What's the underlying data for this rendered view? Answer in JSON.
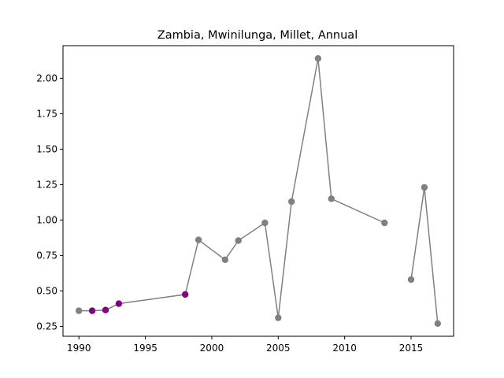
{
  "chart_data": {
    "type": "line",
    "title": "Zambia, Mwinilunga, Millet, Annual",
    "xlabel": "",
    "ylabel": "",
    "xlim": [
      1988.8,
      2018.2
    ],
    "ylim": [
      0.18,
      2.23
    ],
    "x_ticks": [
      1990,
      1995,
      2000,
      2005,
      2010,
      2015
    ],
    "y_ticks": [
      0.25,
      0.5,
      0.75,
      1.0,
      1.25,
      1.5,
      1.75,
      2.0
    ],
    "y_tick_labels": [
      "0.25",
      "0.50",
      "0.75",
      "1.00",
      "1.25",
      "1.50",
      "1.75",
      "2.00"
    ],
    "grid": false,
    "line_color": "#808080",
    "point_color_default": "#808080",
    "point_color_highlight": "#800080",
    "points": [
      {
        "x": 1990,
        "y": 0.36,
        "highlight": false
      },
      {
        "x": 1991,
        "y": 0.36,
        "highlight": true
      },
      {
        "x": 1992,
        "y": 0.365,
        "highlight": true
      },
      {
        "x": 1993,
        "y": 0.41,
        "highlight": true
      },
      {
        "x": 1998,
        "y": 0.475,
        "highlight": true
      },
      {
        "x": 1999,
        "y": 0.86,
        "highlight": false
      },
      {
        "x": 2001,
        "y": 0.72,
        "highlight": false
      },
      {
        "x": 2002,
        "y": 0.855,
        "highlight": false
      },
      {
        "x": 2004,
        "y": 0.98,
        "highlight": false
      },
      {
        "x": 2005,
        "y": 0.31,
        "highlight": false
      },
      {
        "x": 2006,
        "y": 1.13,
        "highlight": false
      },
      {
        "x": 2008,
        "y": 2.14,
        "highlight": false
      },
      {
        "x": 2009,
        "y": 1.15,
        "highlight": false
      },
      {
        "x": 2013,
        "y": 0.98,
        "highlight": false
      },
      {
        "x": 2015,
        "y": 0.58,
        "highlight": false
      },
      {
        "x": 2016,
        "y": 1.23,
        "highlight": false
      },
      {
        "x": 2017,
        "y": 0.27,
        "highlight": false
      }
    ],
    "segments": [
      [
        1990,
        1991,
        1992,
        1993,
        1998,
        1999,
        2001,
        2002,
        2004,
        2005,
        2006,
        2008,
        2009,
        2013
      ],
      [
        2015,
        2016,
        2017
      ]
    ]
  }
}
